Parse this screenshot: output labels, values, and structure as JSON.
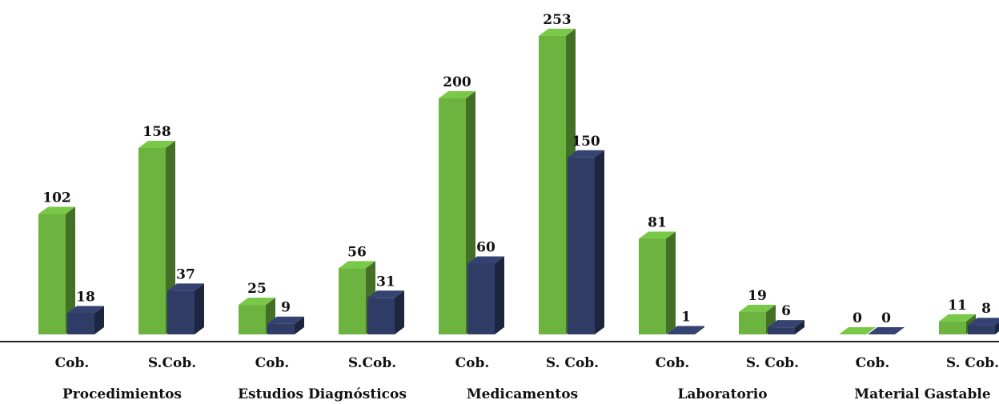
{
  "chart_data": {
    "type": "bar",
    "title": "",
    "xlabel": "",
    "ylabel": "",
    "ylim": [
      0,
      260
    ],
    "grid": false,
    "legend": "none",
    "groups": [
      "Procedimientos",
      "Estudios Diagnósticos",
      "Medicamentos",
      "Laboratorio",
      "Material Gastable"
    ],
    "categories": [
      {
        "label": "Cob.",
        "group": "Procedimientos"
      },
      {
        "label": "S.Cob.",
        "group": "Procedimientos"
      },
      {
        "label": "Cob.",
        "group": "Estudios Diagnósticos"
      },
      {
        "label": "S.Cob.",
        "group": "Estudios Diagnósticos"
      },
      {
        "label": "Cob.",
        "group": "Medicamentos"
      },
      {
        "label": "S. Cob.",
        "group": "Medicamentos"
      },
      {
        "label": "Cob.",
        "group": "Laboratorio"
      },
      {
        "label": "S. Cob.",
        "group": "Laboratorio"
      },
      {
        "label": "Cob.",
        "group": "Material Gastable"
      },
      {
        "label": "S. Cob.",
        "group": "Material Gastable"
      }
    ],
    "series": [
      {
        "color": "#6cb33f",
        "values": [
          102,
          158,
          25,
          56,
          200,
          253,
          81,
          19,
          0,
          11
        ]
      },
      {
        "color": "#2f3c66",
        "values": [
          18,
          37,
          9,
          31,
          60,
          150,
          1,
          6,
          0,
          8
        ]
      }
    ]
  }
}
